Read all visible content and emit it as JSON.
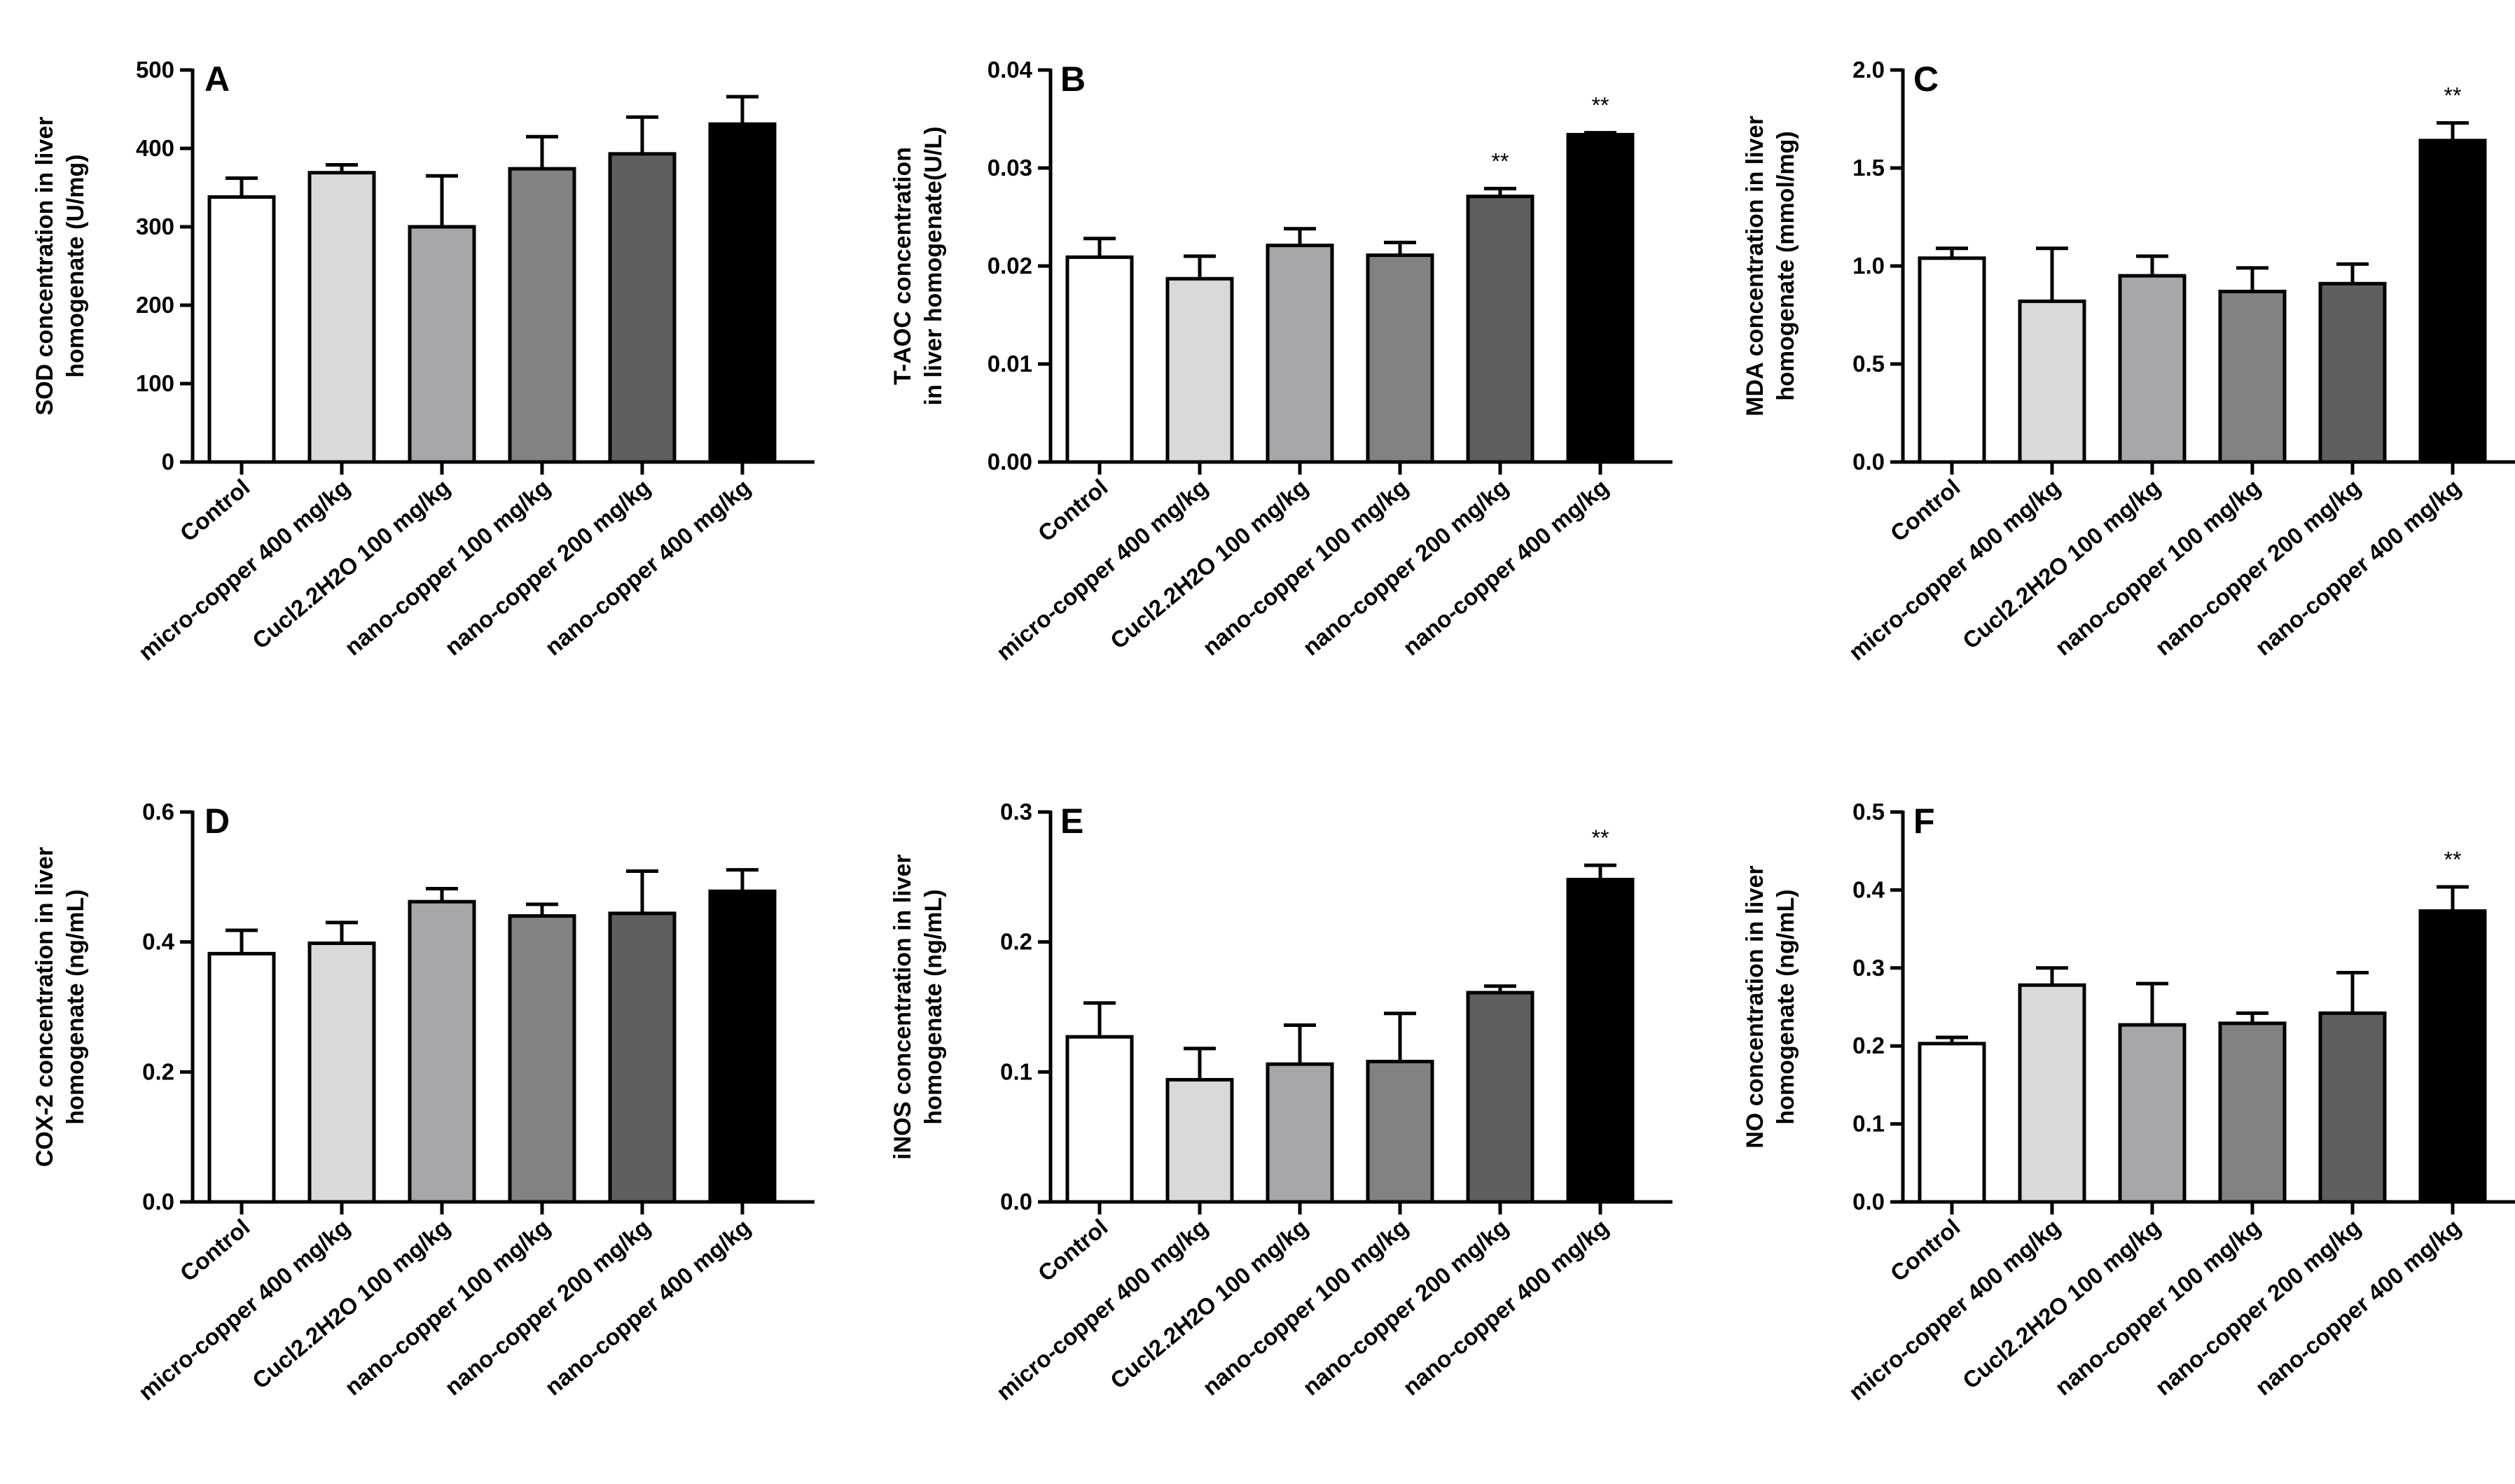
{
  "figure": {
    "categories": [
      "Control",
      "micro-copper 400 mg/kg",
      "Cucl2.2H2O 100 mg/kg",
      "nano-copper 100 mg/kg",
      "nano-copper 200 mg/kg",
      "nano-copper 400 mg/kg"
    ],
    "bar_fills": [
      "#ffffff",
      "#d9d9d9",
      "#a6a6ab",
      "#828282",
      "#5f5f5f",
      "#000000"
    ]
  },
  "chart_data": [
    {
      "type": "bar",
      "panel": "A",
      "ylabel_lines": [
        "SOD concentration in liver",
        "homogenate (U/mg)"
      ],
      "ylim": [
        0,
        500
      ],
      "yticks": [
        0,
        100,
        200,
        300,
        400,
        500
      ],
      "ytick_labels": [
        "0",
        "100",
        "200",
        "300",
        "400",
        "500"
      ],
      "values": [
        338,
        369,
        300,
        374,
        393,
        431
      ],
      "errors": [
        24,
        10,
        65,
        41,
        47,
        35
      ],
      "significance": [
        "",
        "",
        "",
        "",
        "",
        ""
      ]
    },
    {
      "type": "bar",
      "panel": "B",
      "ylabel_lines": [
        "T-AOC concentration",
        "in liver homogenate(U/L)"
      ],
      "ylim": [
        0,
        0.04
      ],
      "yticks": [
        0,
        0.01,
        0.02,
        0.03,
        0.04
      ],
      "ytick_labels": [
        "0.00",
        "0.01",
        "0.02",
        "0.03",
        "0.04"
      ],
      "values": [
        0.0209,
        0.0187,
        0.0221,
        0.0211,
        0.0271,
        0.0334
      ],
      "errors": [
        0.0019,
        0.0023,
        0.0017,
        0.0013,
        0.0008,
        0.0002
      ],
      "significance": [
        "",
        "",
        "",
        "",
        "**",
        "**"
      ]
    },
    {
      "type": "bar",
      "panel": "C",
      "ylabel_lines": [
        "MDA concentration in liver",
        "homogenate (mmol/mg)"
      ],
      "ylim": [
        0,
        2.0
      ],
      "yticks": [
        0,
        0.5,
        1.0,
        1.5,
        2.0
      ],
      "ytick_labels": [
        "0.0",
        "0.5",
        "1.0",
        "1.5",
        "2.0"
      ],
      "values": [
        1.04,
        0.82,
        0.95,
        0.87,
        0.91,
        1.64
      ],
      "errors": [
        0.05,
        0.27,
        0.1,
        0.12,
        0.1,
        0.09
      ],
      "significance": [
        "",
        "",
        "",
        "",
        "",
        "**"
      ]
    },
    {
      "type": "bar",
      "panel": "D",
      "ylabel_lines": [
        "COX-2 concentration in liver",
        "homogenate (ng/mL)"
      ],
      "ylim": [
        0,
        0.6
      ],
      "yticks": [
        0,
        0.2,
        0.4,
        0.6
      ],
      "ytick_labels": [
        "0.0",
        "0.2",
        "0.4",
        "0.6"
      ],
      "values": [
        0.382,
        0.398,
        0.462,
        0.44,
        0.444,
        0.478
      ],
      "errors": [
        0.036,
        0.032,
        0.02,
        0.018,
        0.065,
        0.033
      ],
      "significance": [
        "",
        "",
        "",
        "",
        "",
        ""
      ]
    },
    {
      "type": "bar",
      "panel": "E",
      "ylabel_lines": [
        "iNOS concentration in liver",
        "homogenate (ng/mL)"
      ],
      "ylim": [
        0,
        0.3
      ],
      "yticks": [
        0,
        0.1,
        0.2,
        0.3
      ],
      "ytick_labels": [
        "0.0",
        "0.1",
        "0.2",
        "0.3"
      ],
      "values": [
        0.127,
        0.094,
        0.106,
        0.108,
        0.161,
        0.248
      ],
      "errors": [
        0.026,
        0.024,
        0.03,
        0.037,
        0.005,
        0.011
      ],
      "significance": [
        "",
        "",
        "",
        "",
        "",
        "**"
      ]
    },
    {
      "type": "bar",
      "panel": "F",
      "ylabel_lines": [
        "NO concentration in liver",
        "homogenate (ng/mL)"
      ],
      "ylim": [
        0,
        0.5
      ],
      "yticks": [
        0,
        0.1,
        0.2,
        0.3,
        0.4,
        0.5
      ],
      "ytick_labels": [
        "0.0",
        "0.1",
        "0.2",
        "0.3",
        "0.4",
        "0.5"
      ],
      "values": [
        0.203,
        0.278,
        0.227,
        0.229,
        0.242,
        0.373
      ],
      "errors": [
        0.008,
        0.022,
        0.053,
        0.013,
        0.052,
        0.031
      ],
      "significance": [
        "",
        "",
        "",
        "",
        "",
        "**"
      ]
    }
  ]
}
